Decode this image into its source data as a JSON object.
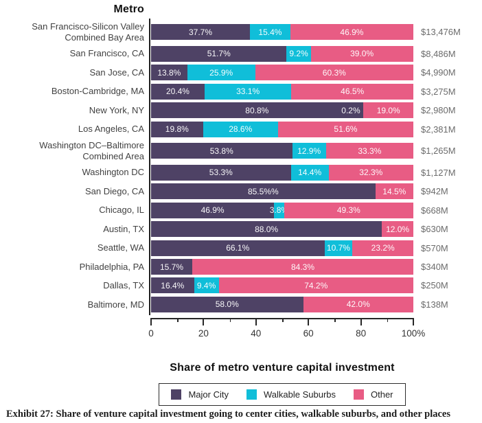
{
  "caption": "Exhibit 27: Share of venture capital investment going to center cities, walkable suburbs, and other places",
  "chart_data": {
    "type": "bar",
    "orientation": "horizontal",
    "stacked": true,
    "title": "Metro",
    "xlabel": "Share of metro venture capital investment",
    "xlim": [
      0,
      100
    ],
    "grid": false,
    "legend_position": "bottom-center",
    "x_major_ticks": [
      0,
      20,
      40,
      60,
      80,
      100
    ],
    "x_minor_ticks": [
      10,
      30,
      50,
      70,
      90
    ],
    "x_tick_labels": [
      "0",
      "20",
      "40",
      "60",
      "80",
      "100%"
    ],
    "series": [
      {
        "name": "Major City",
        "color": "#4e4265"
      },
      {
        "name": "Walkable Suburbs",
        "color": "#10bed9"
      },
      {
        "name": "Other",
        "color": "#e85c84"
      }
    ],
    "rows": [
      {
        "metro": "San Francisco-Silicon Valley\nCombined Bay Area",
        "total": "$13,476M",
        "segments": [
          {
            "series": 0,
            "value": 37.7,
            "label": "37.7%"
          },
          {
            "series": 1,
            "value": 15.4,
            "label": "15.4%"
          },
          {
            "series": 2,
            "value": 46.9,
            "label": "46.9%"
          }
        ]
      },
      {
        "metro": "San Francisco, CA",
        "total": "$8,486M",
        "segments": [
          {
            "series": 0,
            "value": 51.7,
            "label": "51.7%"
          },
          {
            "series": 1,
            "value": 9.2,
            "label": "9.2%"
          },
          {
            "series": 2,
            "value": 39.0,
            "label": "39.0%"
          }
        ]
      },
      {
        "metro": "San Jose, CA",
        "total": "$4,990M",
        "segments": [
          {
            "series": 0,
            "value": 13.8,
            "label": "13.8%"
          },
          {
            "series": 1,
            "value": 25.9,
            "label": "25.9%"
          },
          {
            "series": 2,
            "value": 60.3,
            "label": "60.3%"
          }
        ]
      },
      {
        "metro": "Boston-Cambridge, MA",
        "total": "$3,275M",
        "segments": [
          {
            "series": 0,
            "value": 20.4,
            "label": "20.4%"
          },
          {
            "series": 1,
            "value": 33.1,
            "label": "33.1%"
          },
          {
            "series": 2,
            "value": 46.5,
            "label": "46.5%"
          }
        ]
      },
      {
        "metro": "New York, NY",
        "total": "$2,980M",
        "segments": [
          {
            "series": 0,
            "value": 80.8,
            "label": "80.8%"
          },
          {
            "series": 1,
            "value": 0.2,
            "label": "0.2%",
            "label_pos": "before"
          },
          {
            "series": 2,
            "value": 19.0,
            "label": "19.0%"
          }
        ]
      },
      {
        "metro": "Los Angeles, CA",
        "total": "$2,381M",
        "segments": [
          {
            "series": 0,
            "value": 19.8,
            "label": "19.8%"
          },
          {
            "series": 1,
            "value": 28.6,
            "label": "28.6%"
          },
          {
            "series": 2,
            "value": 51.6,
            "label": "51.6%"
          }
        ]
      },
      {
        "metro": "Washington DC–Baltimore\nCombined Area",
        "total": "$1,265M",
        "segments": [
          {
            "series": 0,
            "value": 53.8,
            "label": "53.8%"
          },
          {
            "series": 1,
            "value": 12.9,
            "label": "12.9%"
          },
          {
            "series": 2,
            "value": 33.3,
            "label": "33.3%"
          }
        ]
      },
      {
        "metro": "Washington DC",
        "total": "$1,127M",
        "segments": [
          {
            "series": 0,
            "value": 53.3,
            "label": "53.3%"
          },
          {
            "series": 1,
            "value": 14.4,
            "label": "14.4%"
          },
          {
            "series": 2,
            "value": 32.3,
            "label": "32.3%"
          }
        ]
      },
      {
        "metro": "San Diego, CA",
        "total": "$942M",
        "segments": [
          {
            "series": 0,
            "value": 85.5,
            "label": "85.5%%"
          },
          {
            "series": 2,
            "value": 14.5,
            "label": "14.5%"
          }
        ]
      },
      {
        "metro": "Chicago, IL",
        "total": "$668M",
        "segments": [
          {
            "series": 0,
            "value": 46.9,
            "label": "46.9%"
          },
          {
            "series": 1,
            "value": 3.8,
            "label": "3.8%"
          },
          {
            "series": 2,
            "value": 49.3,
            "label": "49.3%"
          }
        ]
      },
      {
        "metro": "Austin, TX",
        "total": "$630M",
        "segments": [
          {
            "series": 0,
            "value": 88.0,
            "label": "88.0%"
          },
          {
            "series": 2,
            "value": 12.0,
            "label": "12.0%"
          }
        ]
      },
      {
        "metro": "Seattle, WA",
        "total": "$570M",
        "segments": [
          {
            "series": 0,
            "value": 66.1,
            "label": "66.1%"
          },
          {
            "series": 1,
            "value": 10.7,
            "label": "10.7%"
          },
          {
            "series": 2,
            "value": 23.2,
            "label": "23.2%"
          }
        ]
      },
      {
        "metro": "Philadelphia, PA",
        "total": "$340M",
        "segments": [
          {
            "series": 0,
            "value": 15.7,
            "label": "15.7%"
          },
          {
            "series": 2,
            "value": 84.3,
            "label": "84.3%"
          }
        ]
      },
      {
        "metro": "Dallas, TX",
        "total": "$250M",
        "segments": [
          {
            "series": 0,
            "value": 16.4,
            "label": "16.4%"
          },
          {
            "series": 1,
            "value": 9.4,
            "label": "9.4%"
          },
          {
            "series": 2,
            "value": 74.2,
            "label": "74.2%"
          }
        ]
      },
      {
        "metro": "Baltimore, MD",
        "total": "$138M",
        "segments": [
          {
            "series": 0,
            "value": 58.0,
            "label": "58.0%"
          },
          {
            "series": 2,
            "value": 42.0,
            "label": "42.0%"
          }
        ]
      }
    ]
  }
}
